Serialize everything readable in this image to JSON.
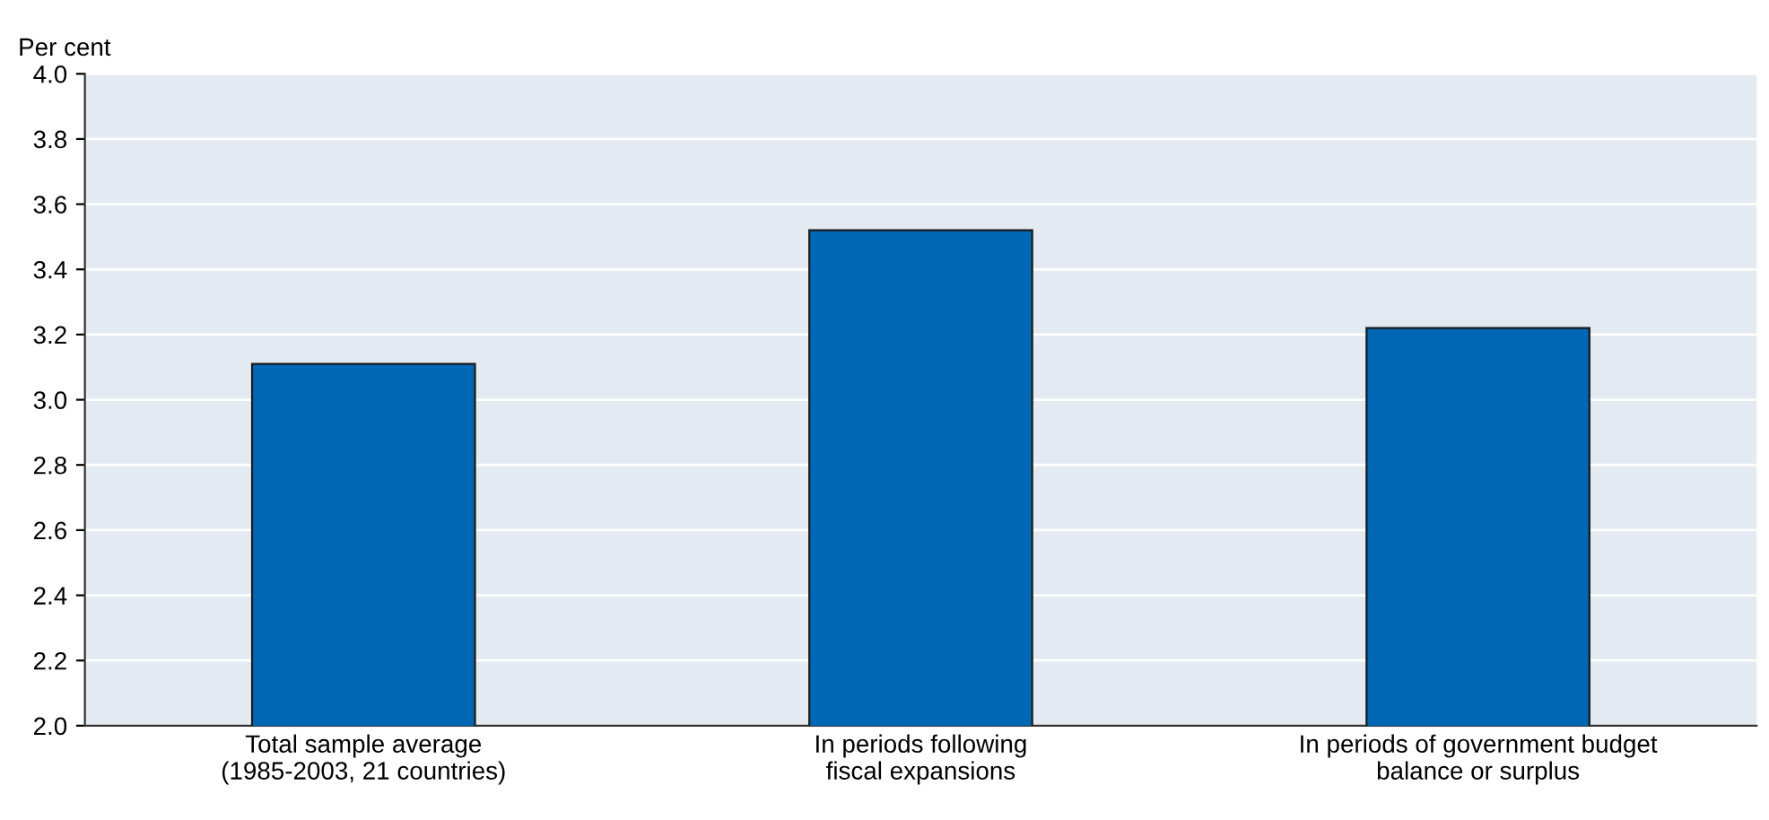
{
  "chart_data": {
    "type": "bar",
    "ylabel": "Per cent",
    "categories": [
      "Total sample average\n(1985-2003, 21 countries)",
      "In periods following\nfiscal expansions",
      "In periods of government budget\nbalance or surplus"
    ],
    "values": [
      3.11,
      3.52,
      3.22
    ],
    "color": "#0067b4",
    "ylim": [
      2.0,
      4.0
    ],
    "yticks": [
      {
        "value": 2.0,
        "label": "2.0"
      },
      {
        "value": 2.2,
        "label": "2.2"
      },
      {
        "value": 2.4,
        "label": "2.4"
      },
      {
        "value": 2.6,
        "label": "2.6"
      },
      {
        "value": 2.8,
        "label": "2.8"
      },
      {
        "value": 3.0,
        "label": "3.0"
      },
      {
        "value": 3.2,
        "label": "3.2"
      },
      {
        "value": 3.4,
        "label": "3.4"
      },
      {
        "value": 3.6,
        "label": "3.6"
      },
      {
        "value": 3.8,
        "label": "3.8"
      },
      {
        "value": 4.0,
        "label": "4.0"
      }
    ],
    "grid": "y"
  }
}
